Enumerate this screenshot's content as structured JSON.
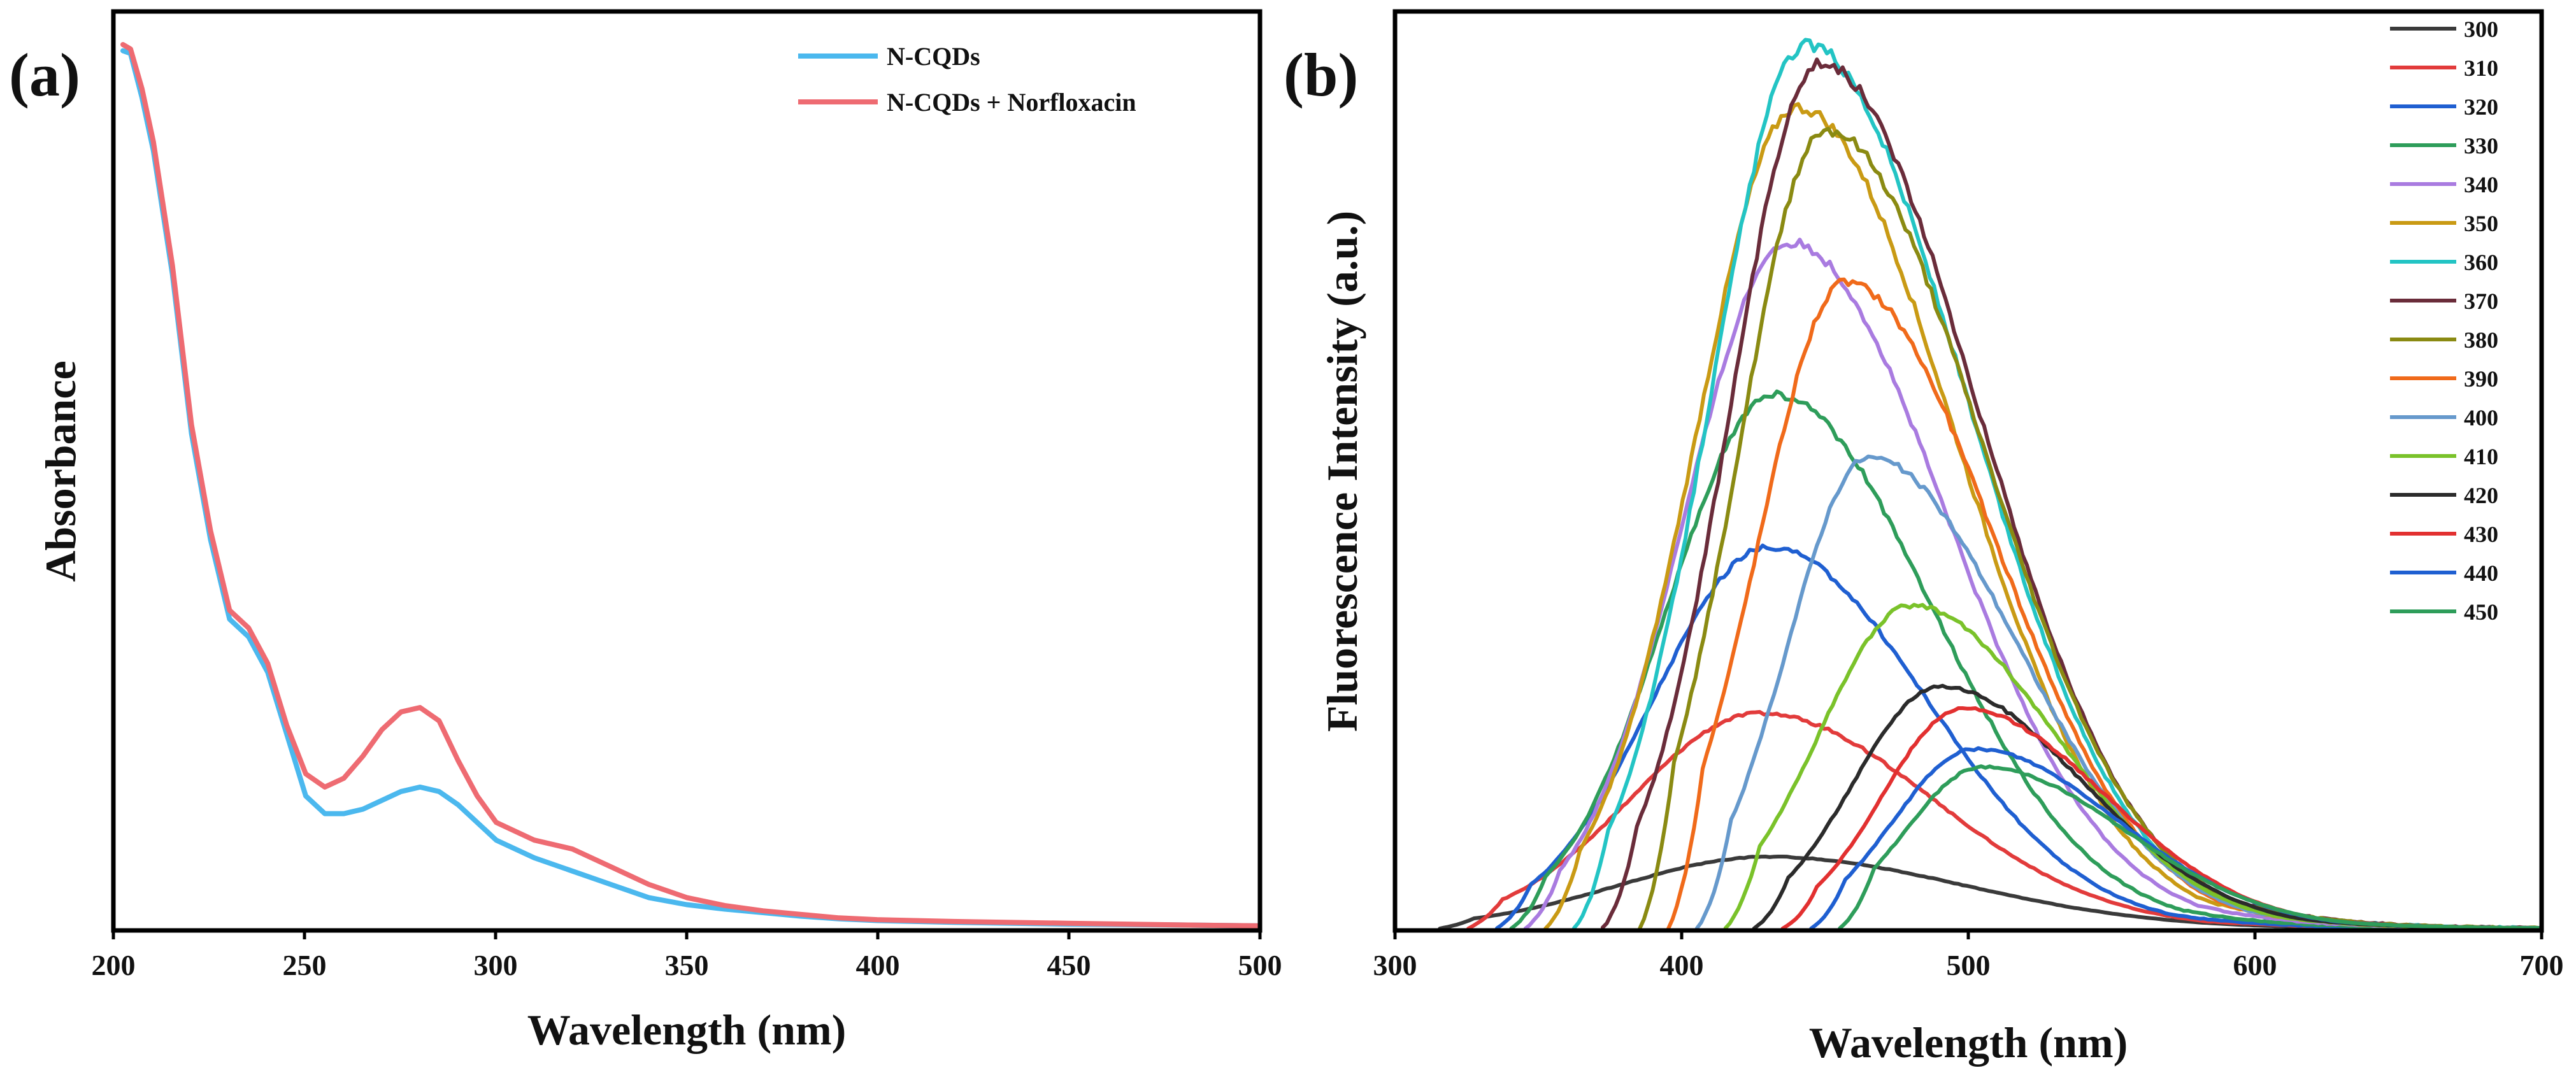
{
  "chart_data": [
    {
      "panel_label": "(a)",
      "type": "line",
      "xlabel": "Wavelength (nm)",
      "ylabel": "Absorbance",
      "xlim": [
        200,
        500
      ],
      "ylim": [
        0,
        1.0
      ],
      "xticks": [
        200,
        250,
        300,
        350,
        400,
        450,
        500
      ],
      "yticks_shown": false,
      "grid": false,
      "legend_position": "top-right",
      "series": [
        {
          "name": "N-CQDs",
          "color": "#4bb8ee",
          "x": [
            202,
            204,
            207,
            210,
            215,
            220,
            225,
            230,
            235,
            240,
            245,
            250,
            255,
            260,
            265,
            270,
            275,
            280,
            285,
            290,
            295,
            300,
            310,
            320,
            330,
            340,
            350,
            360,
            370,
            380,
            390,
            400,
            420,
            450,
            480,
            500
          ],
          "y": [
            0.993,
            0.99,
            0.94,
            0.88,
            0.74,
            0.56,
            0.44,
            0.35,
            0.33,
            0.29,
            0.22,
            0.15,
            0.13,
            0.13,
            0.135,
            0.145,
            0.155,
            0.16,
            0.155,
            0.14,
            0.12,
            0.1,
            0.08,
            0.065,
            0.05,
            0.035,
            0.027,
            0.022,
            0.018,
            0.014,
            0.011,
            0.009,
            0.007,
            0.005,
            0.004,
            0.003
          ]
        },
        {
          "name": "N-CQDs + Norfloxacin",
          "color": "#ee6b72",
          "x": [
            202,
            204,
            207,
            210,
            215,
            220,
            225,
            230,
            235,
            240,
            245,
            250,
            255,
            260,
            265,
            270,
            275,
            280,
            285,
            290,
            295,
            300,
            310,
            320,
            330,
            340,
            350,
            360,
            370,
            380,
            390,
            400,
            420,
            450,
            480,
            500
          ],
          "y": [
            1.0,
            0.995,
            0.95,
            0.89,
            0.75,
            0.57,
            0.45,
            0.36,
            0.34,
            0.3,
            0.23,
            0.175,
            0.16,
            0.17,
            0.195,
            0.225,
            0.245,
            0.25,
            0.235,
            0.19,
            0.15,
            0.12,
            0.1,
            0.09,
            0.07,
            0.05,
            0.035,
            0.026,
            0.02,
            0.016,
            0.012,
            0.01,
            0.008,
            0.006,
            0.004,
            0.003
          ]
        }
      ]
    },
    {
      "panel_label": "(b)",
      "type": "line",
      "xlabel": "Wavelength (nm)",
      "ylabel": "Fluorescence Intensity (a.u.)",
      "xlim": [
        300,
        700
      ],
      "ylim": [
        0,
        1.0
      ],
      "xticks": [
        300,
        400,
        500,
        600,
        700
      ],
      "yticks_shown": false,
      "grid": false,
      "legend_position": "top-right",
      "series": [
        {
          "name": "300",
          "color": "#3a3a3a",
          "start": 315,
          "peak_x": 430,
          "peak": 0.08,
          "width_left": 52,
          "width_right": 68
        },
        {
          "name": "310",
          "color": "#e23b3b",
          "start": 325,
          "peak_x": 427,
          "peak": 0.24,
          "width_left": 45,
          "width_right": 60
        },
        {
          "name": "320",
          "color": "#1f5fd1",
          "start": 335,
          "peak_x": 430,
          "peak": 0.425,
          "width_left": 40,
          "width_right": 55
        },
        {
          "name": "330",
          "color": "#2e9d5a",
          "start": 340,
          "peak_x": 432,
          "peak": 0.595,
          "width_left": 37,
          "width_right": 55
        },
        {
          "name": "340",
          "color": "#a97be0",
          "start": 345,
          "peak_x": 437,
          "peak": 0.765,
          "width_left": 36,
          "width_right": 55
        },
        {
          "name": "350",
          "color": "#c99a14",
          "start": 352,
          "peak_x": 440,
          "peak": 0.915,
          "width_left": 35,
          "width_right": 55
        },
        {
          "name": "360",
          "color": "#23c4c4",
          "start": 362,
          "peak_x": 443,
          "peak": 0.985,
          "width_left": 33,
          "width_right": 56
        },
        {
          "name": "370",
          "color": "#6a2c3a",
          "start": 372,
          "peak_x": 448,
          "peak": 0.965,
          "width_left": 31,
          "width_right": 55
        },
        {
          "name": "380",
          "color": "#8a8a12",
          "start": 385,
          "peak_x": 450,
          "peak": 0.89,
          "width_left": 30,
          "width_right": 55
        },
        {
          "name": "390",
          "color": "#f06a1a",
          "start": 395,
          "peak_x": 457,
          "peak": 0.72,
          "width_left": 30,
          "width_right": 52
        },
        {
          "name": "400",
          "color": "#6699cc",
          "start": 405,
          "peak_x": 465,
          "peak": 0.525,
          "width_left": 28,
          "width_right": 52
        },
        {
          "name": "410",
          "color": "#7ac22a",
          "start": 415,
          "peak_x": 480,
          "peak": 0.36,
          "width_left": 32,
          "width_right": 50
        },
        {
          "name": "420",
          "color": "#2b2b2b",
          "start": 425,
          "peak_x": 490,
          "peak": 0.27,
          "width_left": 30,
          "width_right": 50
        },
        {
          "name": "430",
          "color": "#e23030",
          "start": 435,
          "peak_x": 498,
          "peak": 0.245,
          "width_left": 28,
          "width_right": 50
        },
        {
          "name": "440",
          "color": "#1f5fd1",
          "start": 445,
          "peak_x": 502,
          "peak": 0.2,
          "width_left": 28,
          "width_right": 50
        },
        {
          "name": "450",
          "color": "#2e9d5a",
          "start": 455,
          "peak_x": 505,
          "peak": 0.18,
          "width_left": 27,
          "width_right": 50
        }
      ]
    }
  ]
}
